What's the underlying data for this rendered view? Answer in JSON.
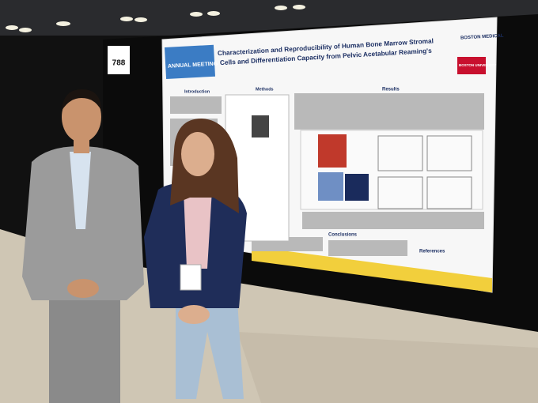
{
  "booth_number": "788",
  "poster": {
    "banner": "ANNUAL MEETING",
    "title_lines": [
      "Characterization and Reproducibility of Human Bone Marrow Stromal",
      "Cells and Differentiation Capacity from Pelvic Acetabular Reaming's"
    ],
    "logos": [
      "BOSTON MEDICAL",
      "BOSTON UNIVERSITY"
    ],
    "sections": [
      "Introduction",
      "Methods",
      "Results",
      "Conclusions",
      "References"
    ]
  }
}
